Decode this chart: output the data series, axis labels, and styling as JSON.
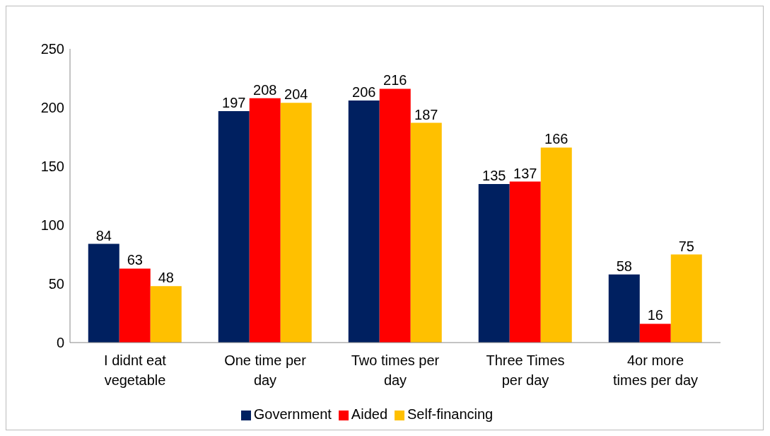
{
  "chart_data": {
    "type": "bar",
    "categories": [
      "I didnt eat vegetable",
      "One time per day",
      "Two times per day",
      "Three Times per day",
      "4or more times per day"
    ],
    "series": [
      {
        "name": "Government",
        "color": "#002060",
        "values": [
          84,
          197,
          206,
          135,
          58
        ]
      },
      {
        "name": "Aided",
        "color": "#ff0000",
        "values": [
          63,
          208,
          216,
          137,
          16
        ]
      },
      {
        "name": "Self-financing",
        "color": "#ffc000",
        "values": [
          48,
          204,
          187,
          166,
          75
        ]
      }
    ],
    "ylim": [
      0,
      250
    ],
    "yticks": [
      0,
      50,
      100,
      150,
      200,
      250
    ],
    "grid": false,
    "legend": "bottom",
    "data_labels": true
  }
}
